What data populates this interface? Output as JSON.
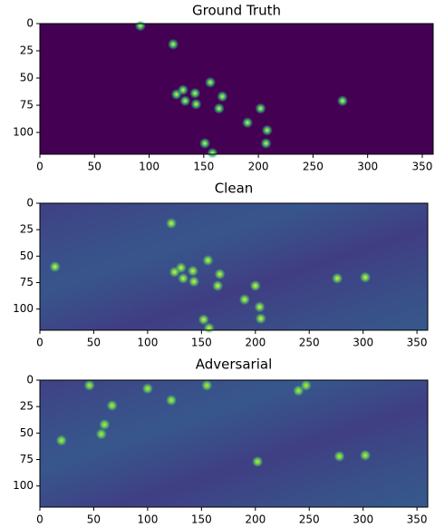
{
  "chart_data": [
    {
      "type": "image",
      "title": "Ground Truth",
      "xlim": [
        0,
        360
      ],
      "ylim": [
        120,
        0
      ],
      "xticks": [
        0,
        50,
        100,
        150,
        200,
        250,
        300,
        350
      ],
      "yticks": [
        0,
        25,
        50,
        75,
        100
      ],
      "background": "#440154",
      "spot_color": "#fde725",
      "halo_color": "#35b779",
      "points": {
        "x": [
          92,
          122,
          156,
          131,
          142,
          125,
          167,
          133,
          143,
          164,
          202,
          277,
          190,
          208,
          207,
          151,
          158
        ],
        "y": [
          2,
          19,
          54,
          61,
          64,
          65,
          67,
          71,
          74,
          78,
          78,
          71,
          91,
          98,
          110,
          110,
          119
        ]
      }
    },
    {
      "type": "image",
      "title": "Clean",
      "xlim": [
        0,
        360
      ],
      "ylim": [
        120,
        0
      ],
      "xticks": [
        0,
        50,
        100,
        150,
        200,
        250,
        300,
        350
      ],
      "yticks": [
        0,
        25,
        50,
        75,
        100
      ],
      "background": "#3b4b8a",
      "spot_color": "#fde725",
      "halo_color": "#5ec962",
      "points": {
        "x": [
          14,
          122,
          156,
          131,
          142,
          125,
          167,
          133,
          143,
          165,
          200,
          276,
          302,
          190,
          204,
          205,
          152,
          157
        ],
        "y": [
          60,
          19,
          54,
          61,
          64,
          65,
          67,
          71,
          74,
          78,
          78,
          71,
          70,
          91,
          98,
          109,
          110,
          118
        ]
      }
    },
    {
      "type": "image",
      "title": "Adversarial",
      "xlim": [
        0,
        360
      ],
      "ylim": [
        120,
        0
      ],
      "xticks": [
        0,
        50,
        100,
        150,
        200,
        250,
        300,
        350
      ],
      "yticks": [
        0,
        25,
        50,
        75,
        100
      ],
      "background": "#3a4d8b",
      "spot_color": "#d8e219",
      "halo_color": "#5ec962",
      "points": {
        "x": [
          46,
          67,
          100,
          122,
          155,
          60,
          57,
          20,
          240,
          247,
          202,
          278,
          302
        ],
        "y": [
          5,
          24,
          8,
          19,
          5,
          42,
          51,
          57,
          10,
          5,
          77,
          72,
          71
        ]
      }
    }
  ]
}
